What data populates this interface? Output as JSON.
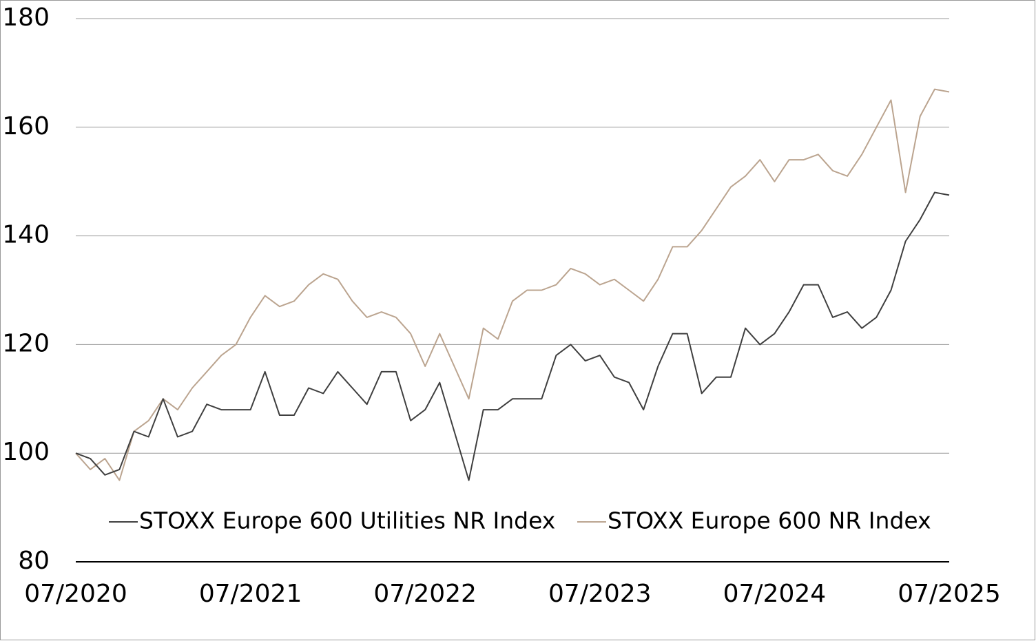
{
  "chart_data": {
    "type": "line",
    "categories": [
      "07/2020",
      null,
      null,
      null,
      null,
      null,
      null,
      null,
      null,
      null,
      null,
      null,
      "07/2021",
      null,
      null,
      null,
      null,
      null,
      null,
      null,
      null,
      null,
      null,
      null,
      "07/2022",
      null,
      null,
      null,
      null,
      null,
      null,
      null,
      null,
      null,
      null,
      null,
      "07/2023",
      null,
      null,
      null,
      null,
      null,
      null,
      null,
      null,
      null,
      null,
      null,
      "07/2024",
      null,
      null,
      null,
      null,
      null,
      null,
      null,
      null,
      null,
      null,
      null,
      "07/2025"
    ],
    "series": [
      {
        "name": "STOXX Europe 600 Utilities NR Index",
        "color": "#3f3f3f",
        "values": [
          100,
          99,
          96,
          97,
          104,
          103,
          110,
          103,
          104,
          109,
          108,
          108,
          108,
          115,
          107,
          107,
          112,
          111,
          115,
          112,
          109,
          115,
          115,
          106,
          108,
          113,
          104,
          95,
          108,
          108,
          110,
          110,
          110,
          118,
          120,
          117,
          118,
          114,
          113,
          108,
          116,
          122,
          122,
          111,
          114,
          114,
          123,
          120,
          122,
          126,
          131,
          131,
          125,
          126,
          123,
          125,
          130,
          139,
          143,
          148,
          147.5
        ]
      },
      {
        "name": "STOXX Europe 600 NR Index",
        "color": "#bba48f",
        "values": [
          100,
          97,
          99,
          95,
          104,
          106,
          110,
          108,
          112,
          115,
          118,
          120,
          125,
          129,
          127,
          128,
          131,
          133,
          132,
          128,
          125,
          126,
          125,
          122,
          116,
          122,
          116,
          110,
          123,
          121,
          128,
          130,
          130,
          131,
          134,
          133,
          131,
          132,
          130,
          128,
          132,
          138,
          138,
          141,
          145,
          149,
          151,
          154,
          150,
          154,
          154,
          155,
          152,
          151,
          155,
          160,
          165,
          148,
          162,
          167,
          166.5
        ]
      }
    ],
    "ylim": [
      80,
      180
    ],
    "yticks": [
      80,
      100,
      120,
      140,
      160,
      180
    ],
    "grid": true
  }
}
